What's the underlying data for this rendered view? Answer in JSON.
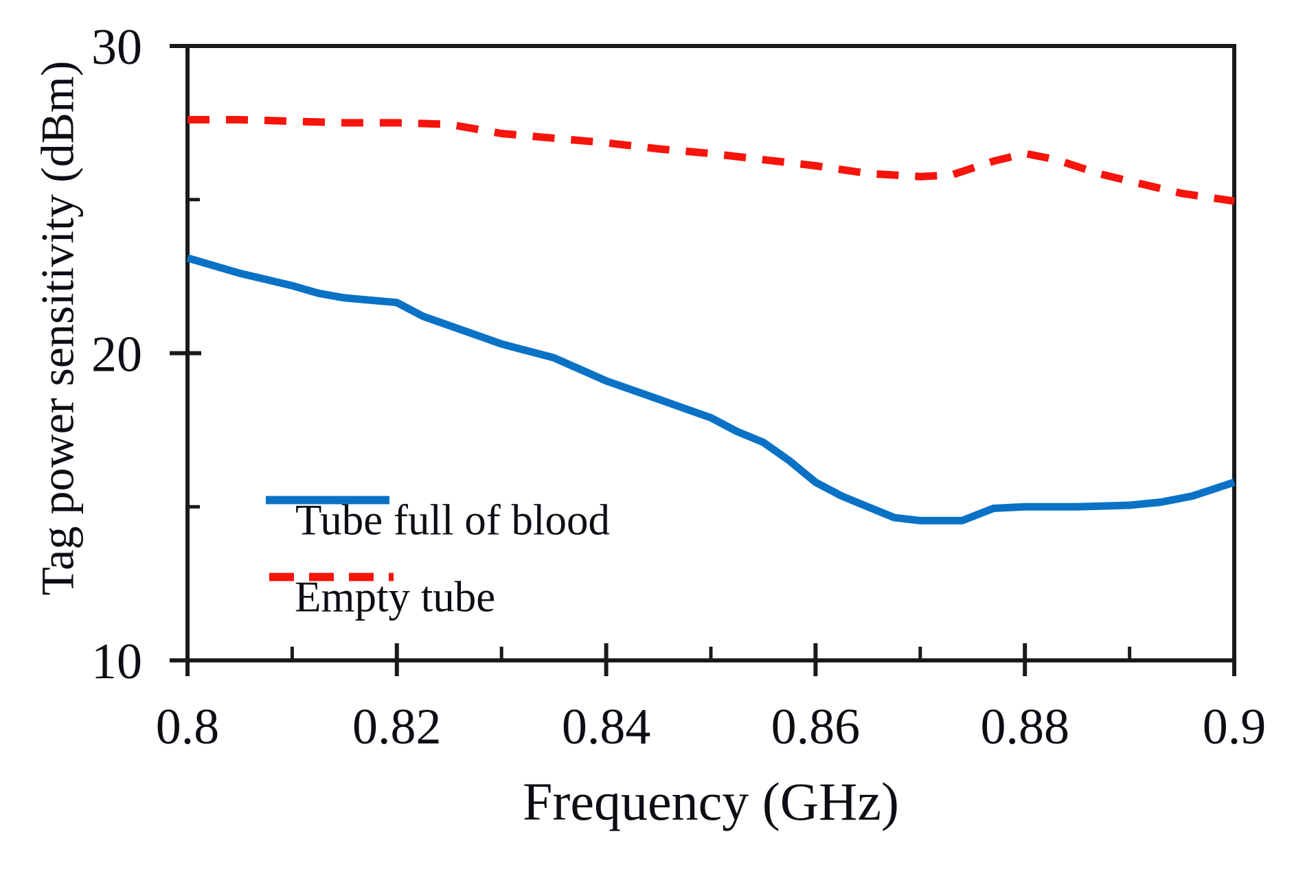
{
  "chart_data": {
    "type": "line",
    "title": "",
    "xlabel": "Frequency (GHz)",
    "ylabel": "Tag power sensitivity (dBm)",
    "xlim": [
      0.8,
      0.9
    ],
    "ylim": [
      10,
      30
    ],
    "grid": false,
    "legend_position": "inside-bottom-left",
    "x_major_ticks": [
      0.8,
      0.82,
      0.84,
      0.86,
      0.88,
      0.9
    ],
    "x_major_tick_labels": [
      "0.8",
      "0.82",
      "0.84",
      "0.86",
      "0.88",
      "0.9"
    ],
    "x_minor_ticks": [
      0.81,
      0.83,
      0.85,
      0.87,
      0.89
    ],
    "y_major_ticks": [
      10,
      20,
      30
    ],
    "y_major_tick_labels": [
      "10",
      "20",
      "30"
    ],
    "y_minor_ticks": [
      15,
      25
    ],
    "series": [
      {
        "name": "Tube full of blood",
        "style": "solid",
        "color": "#0a72c5",
        "x": [
          0.8,
          0.805,
          0.81,
          0.8125,
          0.815,
          0.82,
          0.8225,
          0.825,
          0.83,
          0.835,
          0.84,
          0.845,
          0.85,
          0.8525,
          0.855,
          0.8575,
          0.86,
          0.8625,
          0.865,
          0.8675,
          0.87,
          0.874,
          0.877,
          0.88,
          0.885,
          0.89,
          0.893,
          0.896,
          0.9
        ],
        "y": [
          23.1,
          22.6,
          22.2,
          21.95,
          21.8,
          21.65,
          21.2,
          20.9,
          20.3,
          19.85,
          19.1,
          18.5,
          17.9,
          17.45,
          17.1,
          16.5,
          15.8,
          15.35,
          15.0,
          14.65,
          14.55,
          14.55,
          14.95,
          15.0,
          15.0,
          15.05,
          15.15,
          15.35,
          15.8
        ]
      },
      {
        "name": "Empty tube",
        "style": "dashed",
        "color": "#f6140b",
        "x": [
          0.8,
          0.805,
          0.81,
          0.815,
          0.82,
          0.825,
          0.83,
          0.835,
          0.84,
          0.845,
          0.85,
          0.855,
          0.86,
          0.865,
          0.87,
          0.873,
          0.877,
          0.88,
          0.883,
          0.887,
          0.89,
          0.895,
          0.9
        ],
        "y": [
          27.6,
          27.6,
          27.55,
          27.5,
          27.5,
          27.45,
          27.15,
          27.0,
          26.85,
          26.65,
          26.5,
          26.3,
          26.1,
          25.85,
          25.75,
          25.8,
          26.25,
          26.5,
          26.3,
          25.85,
          25.6,
          25.2,
          24.95
        ]
      }
    ],
    "axis_color": "#1a1a1a",
    "tick_label_color": "#0d0d14"
  }
}
